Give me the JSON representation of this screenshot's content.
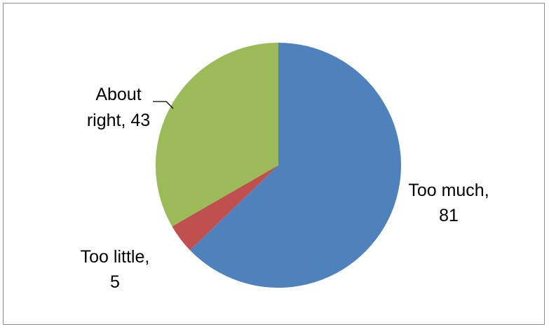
{
  "chart_data": {
    "type": "pie",
    "title": "",
    "categories": [
      "Too much",
      "Too little",
      "About right"
    ],
    "values": [
      81,
      5,
      43
    ],
    "colors": [
      "#4f81bd",
      "#c0504d",
      "#9bbb59"
    ],
    "start_angle_deg": 0,
    "direction": "clockwise",
    "legend": "none",
    "labels": [
      {
        "lines": [
          "Too much,",
          "81"
        ]
      },
      {
        "lines": [
          "Too little,",
          "5"
        ]
      },
      {
        "lines": [
          "About",
          "right, 43"
        ]
      }
    ]
  }
}
